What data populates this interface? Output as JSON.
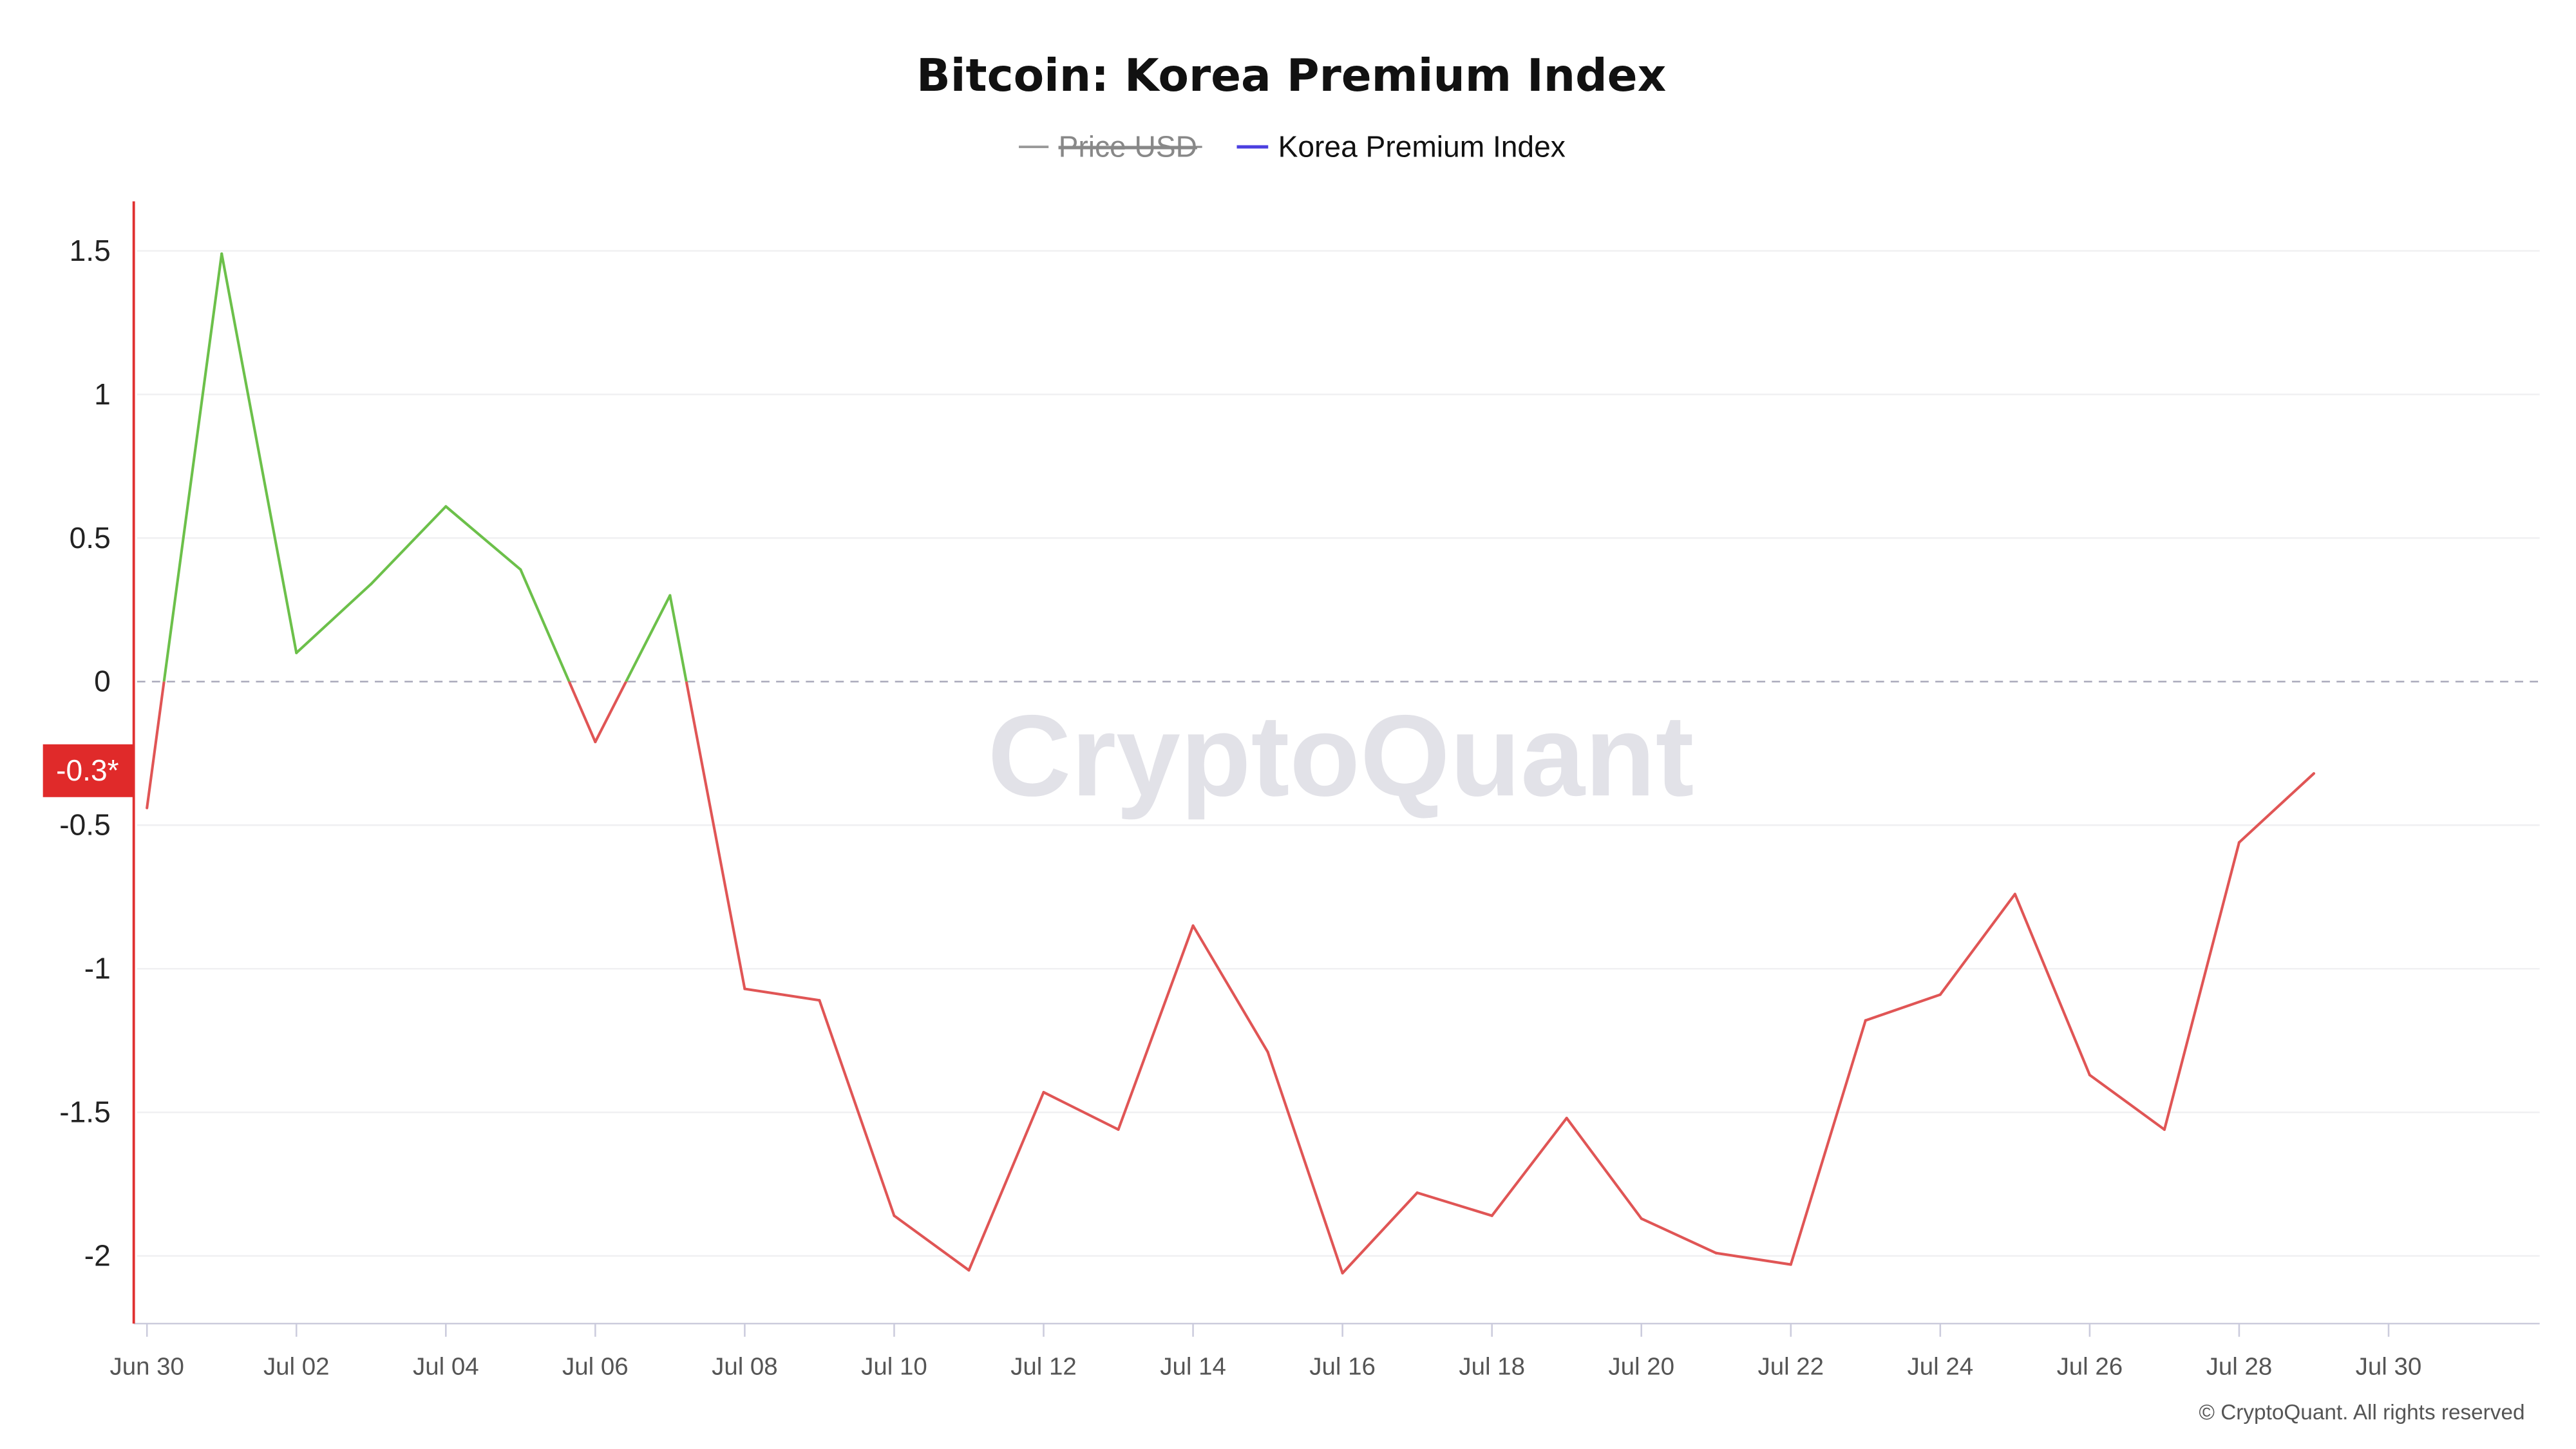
{
  "chart_data": {
    "type": "line",
    "title": "Bitcoin: Korea Premium Index",
    "legend": [
      {
        "name": "Price USD",
        "color": "#888888",
        "hidden": true
      },
      {
        "name": "Korea Premium Index",
        "color": "#4b3fe0",
        "hidden": false
      }
    ],
    "legend_placement": "top-center",
    "x": [
      "Jun 30",
      "Jul 01",
      "Jul 02",
      "Jul 03",
      "Jul 04",
      "Jul 05",
      "Jul 06",
      "Jul 07",
      "Jul 08",
      "Jul 09",
      "Jul 10",
      "Jul 11",
      "Jul 12",
      "Jul 13",
      "Jul 14",
      "Jul 15",
      "Jul 16",
      "Jul 17",
      "Jul 18",
      "Jul 19",
      "Jul 20",
      "Jul 21",
      "Jul 22",
      "Jul 23",
      "Jul 24",
      "Jul 25",
      "Jul 26",
      "Jul 27",
      "Jul 28",
      "Jul 29"
    ],
    "series": [
      {
        "name": "Korea Premium Index",
        "values": [
          -0.44,
          1.49,
          0.1,
          0.34,
          0.61,
          0.39,
          -0.21,
          0.3,
          -1.07,
          -1.11,
          -1.86,
          -2.05,
          -1.43,
          -1.56,
          -0.85,
          -1.29,
          -2.06,
          -1.78,
          -1.86,
          -1.52,
          -1.87,
          -1.99,
          -2.03,
          -1.18,
          -1.09,
          -0.74,
          -1.37,
          -1.56,
          -0.56,
          -0.32
        ]
      }
    ],
    "x_tick_labels": [
      "Jun 30",
      "Jul 02",
      "Jul 04",
      "Jul 06",
      "Jul 08",
      "Jul 10",
      "Jul 12",
      "Jul 14",
      "Jul 16",
      "Jul 18",
      "Jul 20",
      "Jul 22",
      "Jul 24",
      "Jul 26",
      "Jul 28",
      "Jul 30"
    ],
    "y_ticks": [
      1.5,
      1,
      0.5,
      0,
      -0.5,
      -1,
      -1.5,
      -2
    ],
    "y_tick_labels": [
      "1.5",
      "1",
      "0.5",
      "0",
      "-0.5",
      "-1",
      "-1.5",
      "-2"
    ],
    "ylim": [
      -2.24,
      1.66
    ],
    "xlim_days": [
      0,
      32
    ],
    "grid": true,
    "positive_color": "#6cc04a",
    "negative_color": "#e05555",
    "zero_line": "dashed",
    "current_value_label": "-0.3*",
    "current_value_color": "#e02a2a",
    "watermark": "CryptoQuant",
    "copyright": "© CryptoQuant. All rights reserved"
  }
}
